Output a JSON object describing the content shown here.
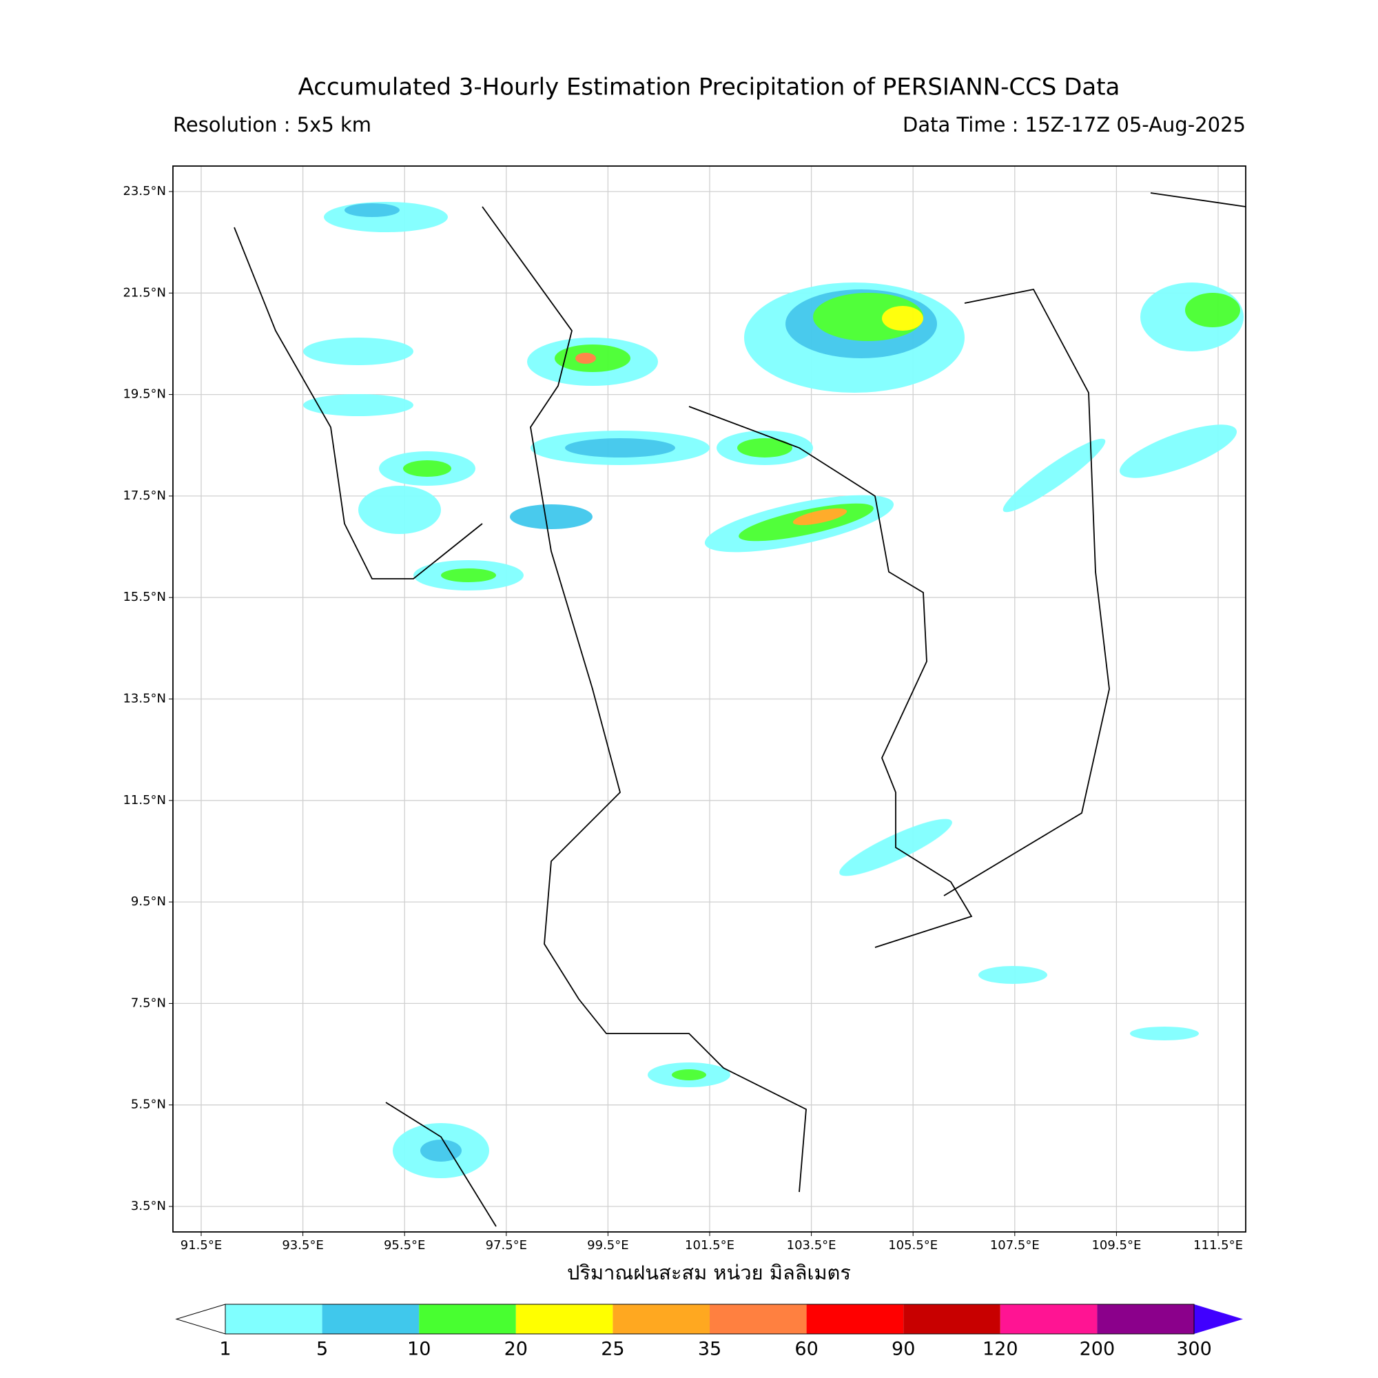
{
  "header": {
    "title": "Accumulated 3-Hourly Estimation Precipitation of PERSIANN-CCS Data",
    "resolution": "Resolution : 5x5 km",
    "data_time": "Data Time : 15Z-17Z 05-Aug-2025"
  },
  "map": {
    "lat_labels": [
      "23.5°N",
      "21.5°N",
      "19.5°N",
      "17.5°N",
      "15.5°N",
      "13.5°N",
      "11.5°N",
      "9.5°N",
      "7.5°N",
      "5.5°N",
      "3.5°N"
    ],
    "lon_labels": [
      "91.5°E",
      "93.5°E",
      "95.5°E",
      "97.5°E",
      "99.5°E",
      "101.5°E",
      "103.5°E",
      "105.5°E",
      "107.5°E",
      "109.5°E",
      "111.5°E"
    ],
    "axis_label": "ปริมาณฝนสะสม หน่วย มิลลิเมตร"
  },
  "colorbar": {
    "ticks": [
      1,
      5,
      10,
      20,
      25,
      35,
      60,
      90,
      120,
      200,
      300
    ],
    "colors": [
      "#80ffff",
      "#40c8ec",
      "#48ff30",
      "#ffff00",
      "#ffa820",
      "#ff8040",
      "#ff0000",
      "#c80000",
      "#ff1493",
      "#8b008b"
    ],
    "under_color": "#ffffff",
    "over_color": "#4000ff"
  }
}
